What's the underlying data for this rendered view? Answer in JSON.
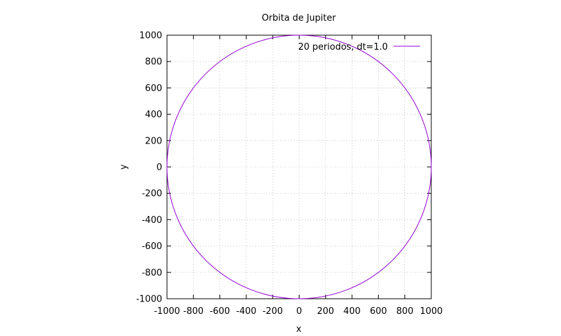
{
  "chart_data": {
    "type": "line",
    "title": "Orbita de Jupiter",
    "xlabel": "x",
    "ylabel": "y",
    "xlim": [
      -1000,
      1000
    ],
    "ylim": [
      -1000,
      1000
    ],
    "xticks": [
      -1000,
      -800,
      -600,
      -400,
      -200,
      0,
      200,
      400,
      600,
      800,
      1000
    ],
    "yticks": [
      -1000,
      -800,
      -600,
      -400,
      -200,
      0,
      200,
      400,
      600,
      800,
      1000
    ],
    "grid": true,
    "legend_position": "top-right",
    "series": [
      {
        "name": "20 periodos, dt=1.0",
        "color": "#9400d3",
        "shape": "circle",
        "center": [
          0,
          0
        ],
        "radius": 1000
      }
    ]
  }
}
